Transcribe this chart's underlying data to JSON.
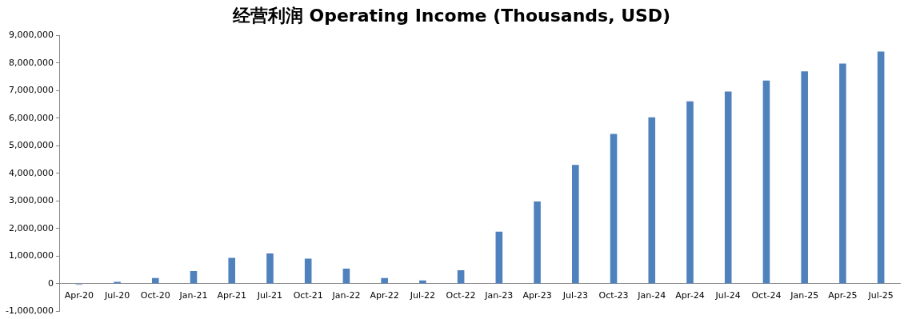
{
  "chart_data": {
    "type": "bar",
    "title": "经营利润 Operating Income (Thousands, USD)",
    "categories": [
      "Apr-20",
      "Jul-20",
      "Oct-20",
      "Jan-21",
      "Apr-21",
      "Jul-21",
      "Oct-21",
      "Jan-22",
      "Apr-22",
      "Jul-22",
      "Oct-22",
      "Jan-23",
      "Apr-23",
      "Jul-23",
      "Oct-23",
      "Jan-24",
      "Apr-24",
      "Jul-24",
      "Oct-24",
      "Jan-25",
      "Apr-25",
      "Jul-25"
    ],
    "values": [
      -40000,
      70000,
      210000,
      460000,
      940000,
      1100000,
      910000,
      550000,
      210000,
      120000,
      490000,
      1890000,
      2980000,
      4310000,
      5430000,
      6030000,
      6610000,
      6970000,
      7370000,
      7700000,
      7980000,
      8420000
    ],
    "color": "#4f81bd",
    "ylim": [
      -1000000,
      9000000
    ],
    "yticks": [
      {
        "value": -1000000,
        "label": "-1,000,000"
      },
      0,
      {
        "value": 1000000,
        "label": "1,000,000"
      },
      {
        "value": 2000000,
        "label": "2,000,000"
      },
      {
        "value": 3000000,
        "label": "3,000,000"
      },
      {
        "value": 4000000,
        "label": "4,000,000"
      },
      {
        "value": 5000000,
        "label": "5,000,000"
      },
      {
        "value": 6000000,
        "label": "6,000,000"
      },
      {
        "value": 7000000,
        "label": "7,000,000"
      },
      {
        "value": 8000000,
        "label": "8,000,000"
      },
      {
        "value": 9000000,
        "label": "9,000,000"
      }
    ],
    "grid": false,
    "legend": false
  }
}
